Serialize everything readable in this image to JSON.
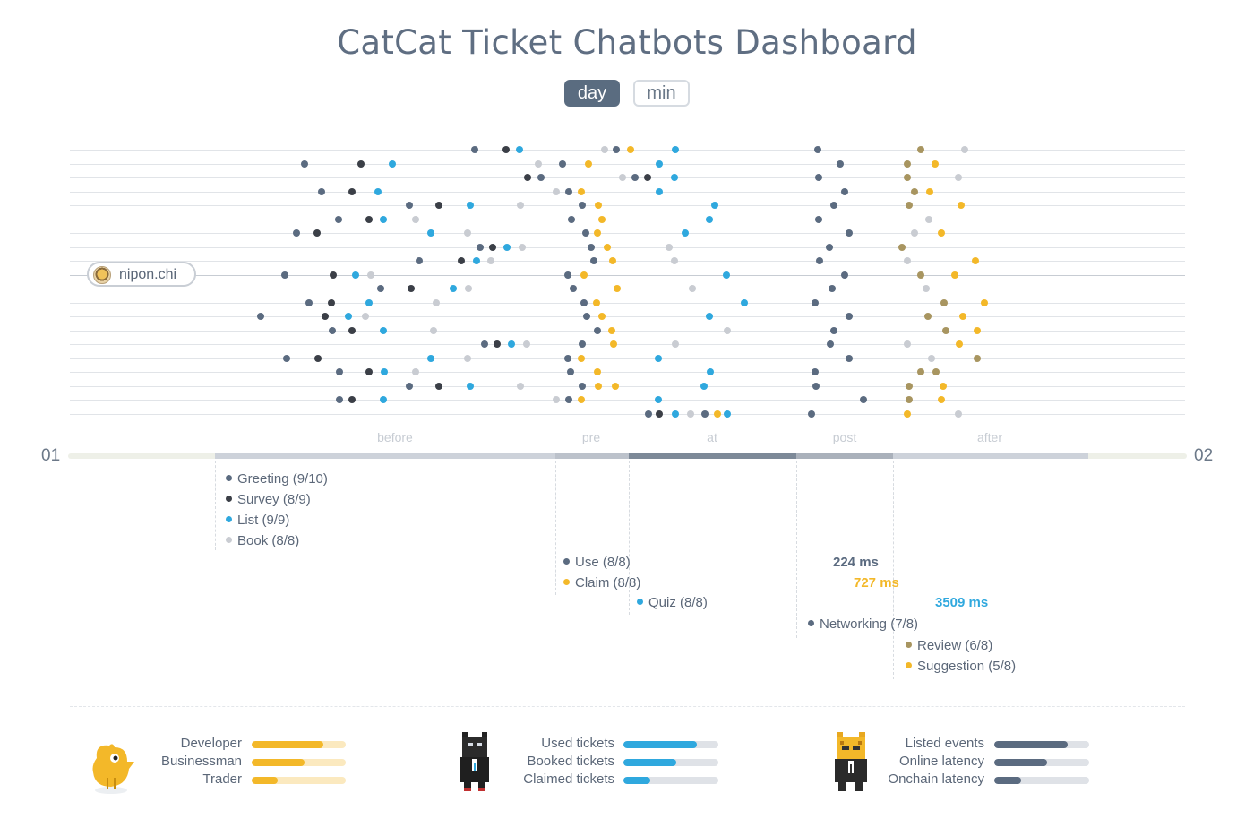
{
  "title": "CatCat Ticket Chatbots Dashboard",
  "toggles": [
    {
      "label": "day",
      "active": true
    },
    {
      "label": "min",
      "active": false
    }
  ],
  "selected_user": "nipon.chi",
  "timeline": {
    "start_label": "01",
    "end_label": "02",
    "stages": [
      "before",
      "pre",
      "at",
      "post",
      "after"
    ]
  },
  "event_legend": [
    {
      "label": "Greeting (9/10)",
      "color": "#5b6b80"
    },
    {
      "label": "Survey (8/9)",
      "color": "#3b3f47"
    },
    {
      "label": "List (9/9)",
      "color": "#2fa8de"
    },
    {
      "label": "Book (8/8)",
      "color": "#c9ccd2"
    },
    {
      "label": "Use (8/8)",
      "color": "#5b6b80"
    },
    {
      "label": "Claim (8/8)",
      "color": "#f3b829"
    },
    {
      "label": "Quiz (8/8)",
      "color": "#2fa8de"
    },
    {
      "label": "Networking (7/8)",
      "color": "#5b6b80"
    },
    {
      "label": "Review (6/8)",
      "color": "#a89560"
    },
    {
      "label": "Suggestion (5/8)",
      "color": "#f3b829"
    }
  ],
  "latencies": [
    {
      "label": "224 ms",
      "color": "#5b6b80"
    },
    {
      "label": "727 ms",
      "color": "#f3b829"
    },
    {
      "label": "3509 ms",
      "color": "#2fa8de"
    }
  ],
  "chart_data": {
    "type": "scatter",
    "title": "CatCat Ticket Chatbots Dashboard",
    "rows": 20,
    "series_colors": {
      "Greeting": "#5b6b80",
      "Survey": "#3b3f47",
      "List": "#2fa8de",
      "Book": "#c9ccd2",
      "Use": "#5b6b80",
      "Claim": "#f3b829",
      "Quiz": "#2fa8de",
      "Networking": "#5b6b80",
      "Review": "#a89560",
      "Suggestion": "#f3b829"
    },
    "points": [
      [
        0,
        530,
        "Greeting"
      ],
      [
        0,
        565,
        "Survey"
      ],
      [
        0,
        580,
        "List"
      ],
      [
        0,
        675,
        "Book"
      ],
      [
        0,
        688,
        "Greeting"
      ],
      [
        0,
        704,
        "Claim"
      ],
      [
        0,
        754,
        "List"
      ],
      [
        0,
        913,
        "Networking"
      ],
      [
        0,
        1028,
        "Review"
      ],
      [
        0,
        1077,
        "Book"
      ],
      [
        1,
        340,
        "Greeting"
      ],
      [
        1,
        403,
        "Survey"
      ],
      [
        1,
        438,
        "List"
      ],
      [
        1,
        601,
        "Book"
      ],
      [
        1,
        628,
        "Greeting"
      ],
      [
        1,
        657,
        "Claim"
      ],
      [
        1,
        736,
        "List"
      ],
      [
        1,
        938,
        "Networking"
      ],
      [
        1,
        1013,
        "Review"
      ],
      [
        1,
        1044,
        "Suggestion"
      ],
      [
        2,
        589,
        "Survey"
      ],
      [
        2,
        604,
        "Greeting"
      ],
      [
        2,
        695,
        "Book"
      ],
      [
        2,
        709,
        "Greeting"
      ],
      [
        2,
        723,
        "Survey"
      ],
      [
        2,
        753,
        "List"
      ],
      [
        2,
        914,
        "Networking"
      ],
      [
        2,
        1013,
        "Review"
      ],
      [
        2,
        1070,
        "Book"
      ],
      [
        3,
        359,
        "Greeting"
      ],
      [
        3,
        393,
        "Survey"
      ],
      [
        3,
        422,
        "List"
      ],
      [
        3,
        621,
        "Book"
      ],
      [
        3,
        635,
        "Greeting"
      ],
      [
        3,
        649,
        "Claim"
      ],
      [
        3,
        736,
        "List"
      ],
      [
        3,
        943,
        "Networking"
      ],
      [
        3,
        1021,
        "Review"
      ],
      [
        3,
        1038,
        "Suggestion"
      ],
      [
        4,
        457,
        "Greeting"
      ],
      [
        4,
        490,
        "Survey"
      ],
      [
        4,
        525,
        "List"
      ],
      [
        4,
        581,
        "Book"
      ],
      [
        4,
        650,
        "Greeting"
      ],
      [
        4,
        668,
        "Claim"
      ],
      [
        4,
        798,
        "List"
      ],
      [
        4,
        931,
        "Networking"
      ],
      [
        4,
        1015,
        "Review"
      ],
      [
        4,
        1073,
        "Claim"
      ],
      [
        5,
        378,
        "Greeting"
      ],
      [
        5,
        412,
        "Survey"
      ],
      [
        5,
        428,
        "List"
      ],
      [
        5,
        464,
        "Book"
      ],
      [
        5,
        638,
        "Greeting"
      ],
      [
        5,
        672,
        "Claim"
      ],
      [
        5,
        792,
        "List"
      ],
      [
        5,
        914,
        "Networking"
      ],
      [
        5,
        1037,
        "Book"
      ],
      [
        6,
        331,
        "Greeting"
      ],
      [
        6,
        354,
        "Survey"
      ],
      [
        6,
        481,
        "List"
      ],
      [
        6,
        522,
        "Book"
      ],
      [
        6,
        654,
        "Greeting"
      ],
      [
        6,
        667,
        "Claim"
      ],
      [
        6,
        765,
        "List"
      ],
      [
        6,
        948,
        "Networking"
      ],
      [
        6,
        1021,
        "Book"
      ],
      [
        6,
        1051,
        "Claim"
      ],
      [
        7,
        536,
        "Greeting"
      ],
      [
        7,
        550,
        "Survey"
      ],
      [
        7,
        566,
        "List"
      ],
      [
        7,
        583,
        "Book"
      ],
      [
        7,
        660,
        "Greeting"
      ],
      [
        7,
        678,
        "Claim"
      ],
      [
        7,
        747,
        "Book"
      ],
      [
        7,
        926,
        "Networking"
      ],
      [
        7,
        1007,
        "Review"
      ],
      [
        8,
        468,
        "Greeting"
      ],
      [
        8,
        515,
        "Survey"
      ],
      [
        8,
        532,
        "List"
      ],
      [
        8,
        548,
        "Book"
      ],
      [
        8,
        663,
        "Greeting"
      ],
      [
        8,
        684,
        "Claim"
      ],
      [
        8,
        753,
        "Book"
      ],
      [
        8,
        915,
        "Networking"
      ],
      [
        8,
        1013,
        "Book"
      ],
      [
        8,
        1089,
        "Suggestion"
      ],
      [
        9,
        318,
        "Greeting"
      ],
      [
        9,
        372,
        "Survey"
      ],
      [
        9,
        397,
        "List"
      ],
      [
        9,
        414,
        "Book"
      ],
      [
        9,
        634,
        "Greeting"
      ],
      [
        9,
        652,
        "Claim"
      ],
      [
        9,
        811,
        "List"
      ],
      [
        9,
        943,
        "Networking"
      ],
      [
        9,
        1028,
        "Review"
      ],
      [
        9,
        1066,
        "Suggestion"
      ],
      [
        10,
        425,
        "Greeting"
      ],
      [
        10,
        459,
        "Survey"
      ],
      [
        10,
        506,
        "List"
      ],
      [
        10,
        523,
        "Book"
      ],
      [
        10,
        640,
        "Greeting"
      ],
      [
        10,
        689,
        "Claim"
      ],
      [
        10,
        773,
        "Book"
      ],
      [
        10,
        929,
        "Networking"
      ],
      [
        10,
        1034,
        "Book"
      ],
      [
        11,
        345,
        "Greeting"
      ],
      [
        11,
        370,
        "Survey"
      ],
      [
        11,
        412,
        "List"
      ],
      [
        11,
        487,
        "Book"
      ],
      [
        11,
        652,
        "Greeting"
      ],
      [
        11,
        666,
        "Claim"
      ],
      [
        11,
        831,
        "List"
      ],
      [
        11,
        910,
        "Networking"
      ],
      [
        11,
        1054,
        "Review"
      ],
      [
        11,
        1099,
        "Suggestion"
      ],
      [
        12,
        291,
        "Greeting"
      ],
      [
        12,
        363,
        "Survey"
      ],
      [
        12,
        389,
        "List"
      ],
      [
        12,
        408,
        "Book"
      ],
      [
        12,
        655,
        "Greeting"
      ],
      [
        12,
        672,
        "Claim"
      ],
      [
        12,
        792,
        "List"
      ],
      [
        12,
        948,
        "Networking"
      ],
      [
        12,
        1036,
        "Review"
      ],
      [
        12,
        1075,
        "Suggestion"
      ],
      [
        13,
        371,
        "Greeting"
      ],
      [
        13,
        393,
        "Survey"
      ],
      [
        13,
        428,
        "List"
      ],
      [
        13,
        484,
        "Book"
      ],
      [
        13,
        667,
        "Greeting"
      ],
      [
        13,
        683,
        "Claim"
      ],
      [
        13,
        812,
        "Book"
      ],
      [
        13,
        931,
        "Networking"
      ],
      [
        13,
        1056,
        "Review"
      ],
      [
        13,
        1091,
        "Suggestion"
      ],
      [
        14,
        541,
        "Greeting"
      ],
      [
        14,
        555,
        "Survey"
      ],
      [
        14,
        571,
        "List"
      ],
      [
        14,
        588,
        "Book"
      ],
      [
        14,
        650,
        "Greeting"
      ],
      [
        14,
        685,
        "Claim"
      ],
      [
        14,
        754,
        "Book"
      ],
      [
        14,
        927,
        "Networking"
      ],
      [
        14,
        1013,
        "Book"
      ],
      [
        14,
        1071,
        "Suggestion"
      ],
      [
        15,
        320,
        "Greeting"
      ],
      [
        15,
        355,
        "Survey"
      ],
      [
        15,
        481,
        "List"
      ],
      [
        15,
        522,
        "Book"
      ],
      [
        15,
        634,
        "Greeting"
      ],
      [
        15,
        649,
        "Claim"
      ],
      [
        15,
        735,
        "List"
      ],
      [
        15,
        948,
        "Networking"
      ],
      [
        15,
        1040,
        "Book"
      ],
      [
        15,
        1091,
        "Review"
      ],
      [
        16,
        379,
        "Greeting"
      ],
      [
        16,
        412,
        "Survey"
      ],
      [
        16,
        429,
        "List"
      ],
      [
        16,
        464,
        "Book"
      ],
      [
        16,
        637,
        "Greeting"
      ],
      [
        16,
        667,
        "Claim"
      ],
      [
        16,
        793,
        "List"
      ],
      [
        16,
        910,
        "Networking"
      ],
      [
        16,
        1028,
        "Review"
      ],
      [
        16,
        1045,
        "Review"
      ],
      [
        17,
        457,
        "Greeting"
      ],
      [
        17,
        490,
        "Survey"
      ],
      [
        17,
        525,
        "List"
      ],
      [
        17,
        581,
        "Book"
      ],
      [
        17,
        650,
        "Greeting"
      ],
      [
        17,
        668,
        "Claim"
      ],
      [
        17,
        687,
        "Claim"
      ],
      [
        17,
        786,
        "List"
      ],
      [
        17,
        911,
        "Networking"
      ],
      [
        17,
        1015,
        "Review"
      ],
      [
        17,
        1053,
        "Claim"
      ],
      [
        18,
        379,
        "Greeting"
      ],
      [
        18,
        393,
        "Survey"
      ],
      [
        18,
        428,
        "List"
      ],
      [
        18,
        621,
        "Book"
      ],
      [
        18,
        635,
        "Greeting"
      ],
      [
        18,
        649,
        "Claim"
      ],
      [
        18,
        735,
        "List"
      ],
      [
        18,
        964,
        "Networking"
      ],
      [
        18,
        1015,
        "Review"
      ],
      [
        18,
        1051,
        "Suggestion"
      ],
      [
        19,
        724,
        "Greeting"
      ],
      [
        19,
        736,
        "Survey"
      ],
      [
        19,
        754,
        "List"
      ],
      [
        19,
        771,
        "Book"
      ],
      [
        19,
        787,
        "Greeting"
      ],
      [
        19,
        801,
        "Claim"
      ],
      [
        19,
        812,
        "List"
      ],
      [
        19,
        906,
        "Networking"
      ],
      [
        19,
        1013,
        "Suggestion"
      ],
      [
        19,
        1070,
        "Book"
      ]
    ]
  },
  "stats": [
    {
      "mascot": "yellow-bird-icon",
      "bars": [
        {
          "label": "Developer",
          "value": 0.76,
          "color": "#f3b829"
        },
        {
          "label": "Businessman",
          "value": 0.56,
          "color": "#f3b829"
        },
        {
          "label": "Trader",
          "value": 0.28,
          "color": "#f3b829"
        }
      ]
    },
    {
      "mascot": "black-cat-icon",
      "bars": [
        {
          "label": "Used tickets",
          "value": 0.77,
          "color": "#2fa8de"
        },
        {
          "label": "Booked tickets",
          "value": 0.56,
          "color": "#2fa8de"
        },
        {
          "label": "Claimed tickets",
          "value": 0.28,
          "color": "#2fa8de"
        }
      ]
    },
    {
      "mascot": "tiger-cat-icon",
      "bars": [
        {
          "label": "Listed events",
          "value": 0.77,
          "color": "#5b6b80"
        },
        {
          "label": "Online latency",
          "value": 0.56,
          "color": "#5b6b80"
        },
        {
          "label": "Onchain latency",
          "value": 0.28,
          "color": "#5b6b80"
        }
      ]
    }
  ]
}
